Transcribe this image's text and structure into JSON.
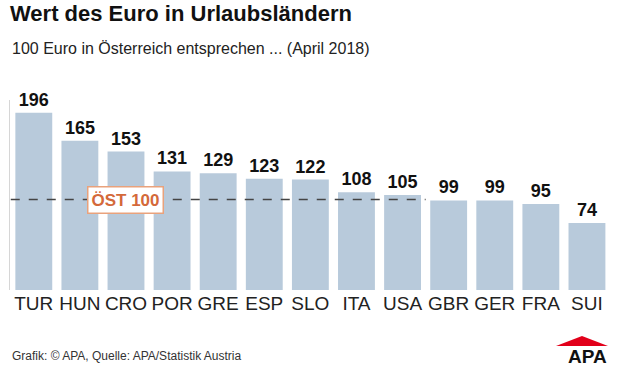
{
  "chart_data": {
    "type": "bar",
    "title": "Wert des Euro in Urlaubsländern",
    "subtitle": "100 Euro in Österreich entsprechen ... (April 2018)",
    "categories": [
      "TUR",
      "HUN",
      "CRO",
      "POR",
      "GRE",
      "ESP",
      "SLO",
      "ITA",
      "USA",
      "GBR",
      "GER",
      "FRA",
      "SUI"
    ],
    "values": [
      196,
      165,
      153,
      131,
      129,
      123,
      122,
      108,
      105,
      99,
      99,
      95,
      74
    ],
    "color": "#b8cadb",
    "ylim": [
      0,
      210
    ],
    "yticks": [],
    "grid": false,
    "data_labels": true,
    "tick_labels": "x",
    "reference_line": {
      "value": 100,
      "label": "ÖST 100",
      "label_at": "CRO",
      "end": "USA"
    },
    "source": "Grafik: © APA, Quelle: APA/Statistik Austria",
    "logo": "APA"
  }
}
